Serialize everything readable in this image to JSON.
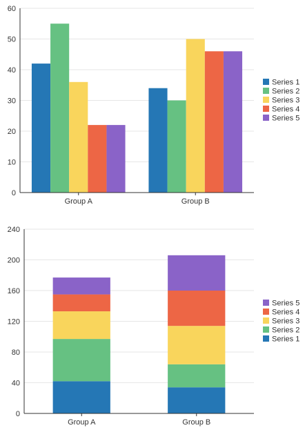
{
  "chart_data": [
    {
      "type": "bar",
      "stacked": false,
      "categories": [
        "Group A",
        "Group B"
      ],
      "series": [
        {
          "name": "Series 1",
          "values": [
            42,
            34
          ],
          "color": "#2577b5"
        },
        {
          "name": "Series 2",
          "values": [
            55,
            30
          ],
          "color": "#66c182"
        },
        {
          "name": "Series 3",
          "values": [
            36,
            50
          ],
          "color": "#f9d55c"
        },
        {
          "name": "Series 4",
          "values": [
            22,
            46
          ],
          "color": "#ed6645"
        },
        {
          "name": "Series 5",
          "values": [
            22,
            46
          ],
          "color": "#8a63c8"
        }
      ],
      "ylim": [
        0,
        60
      ],
      "yticks": [
        0,
        10,
        20,
        30,
        40,
        50,
        60
      ],
      "grid": true,
      "legend": "right",
      "legend_order": [
        "Series 1",
        "Series 2",
        "Series 3",
        "Series 4",
        "Series 5"
      ]
    },
    {
      "type": "bar",
      "stacked": true,
      "categories": [
        "Group A",
        "Group B"
      ],
      "series": [
        {
          "name": "Series 1",
          "values": [
            42,
            34
          ],
          "color": "#2577b5"
        },
        {
          "name": "Series 2",
          "values": [
            55,
            30
          ],
          "color": "#66c182"
        },
        {
          "name": "Series 3",
          "values": [
            36,
            50
          ],
          "color": "#f9d55c"
        },
        {
          "name": "Series 4",
          "values": [
            22,
            46
          ],
          "color": "#ed6645"
        },
        {
          "name": "Series 5",
          "values": [
            22,
            46
          ],
          "color": "#8a63c8"
        }
      ],
      "ylim": [
        0,
        240
      ],
      "yticks": [
        0,
        40,
        80,
        120,
        160,
        200,
        240
      ],
      "grid": true,
      "legend": "right",
      "legend_order": [
        "Series 5",
        "Series 4",
        "Series 3",
        "Series 2",
        "Series 1"
      ]
    }
  ]
}
